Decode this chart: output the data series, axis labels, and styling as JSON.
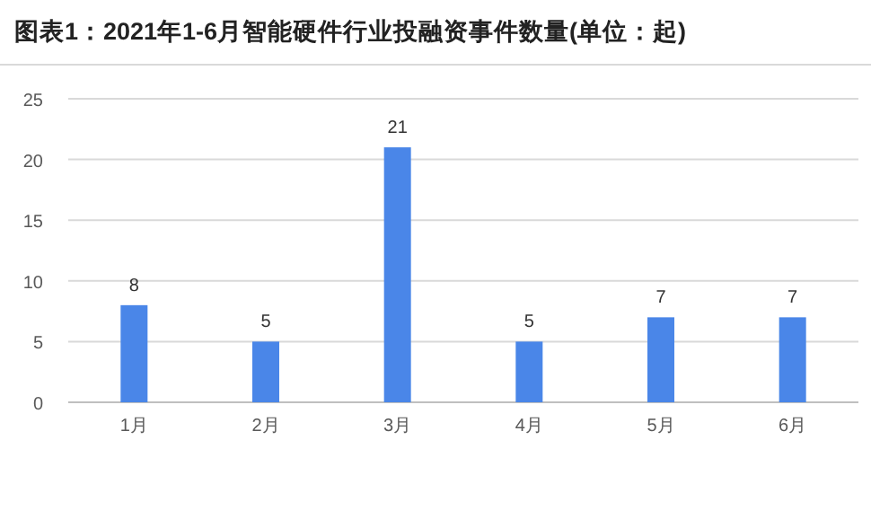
{
  "chart_data": {
    "type": "bar",
    "title": "图表1：2021年1-6月智能硬件行业投融资事件数量(单位：起)",
    "categories": [
      "1月",
      "2月",
      "3月",
      "4月",
      "5月",
      "6月"
    ],
    "values": [
      8,
      5,
      21,
      5,
      7,
      7
    ],
    "color": "#4a86e8",
    "ylim": [
      0,
      25
    ],
    "yticks": [
      0,
      5,
      10,
      15,
      20,
      25
    ],
    "grid": "y",
    "data_labels": true
  }
}
